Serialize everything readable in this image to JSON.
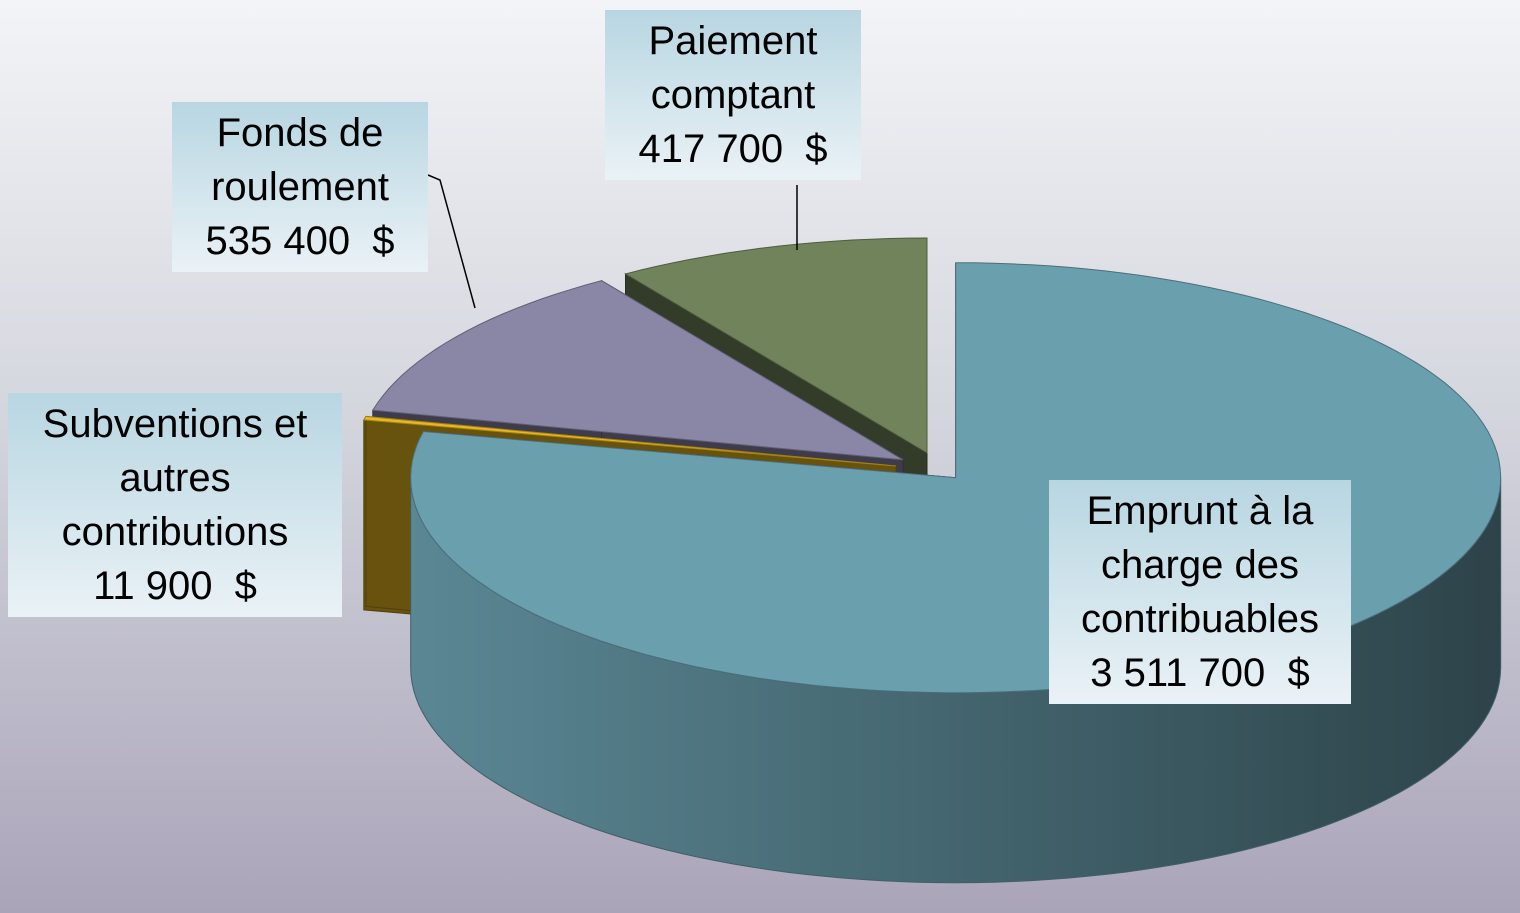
{
  "chart_data": {
    "type": "pie3d",
    "categories": [
      "Emprunt à la charge des contribuables",
      "Subventions et autres contributions",
      "Fonds de roulement",
      "Paiement comptant"
    ],
    "values": [
      3511700,
      11900,
      535400,
      417700
    ],
    "value_labels": [
      "3 511 700  $",
      "11 900  $",
      "535 400  $",
      "417 700  $"
    ],
    "colors": [
      "#6a9fae",
      "#e8b820",
      "#8a86a6",
      "#71835a"
    ]
  }
}
